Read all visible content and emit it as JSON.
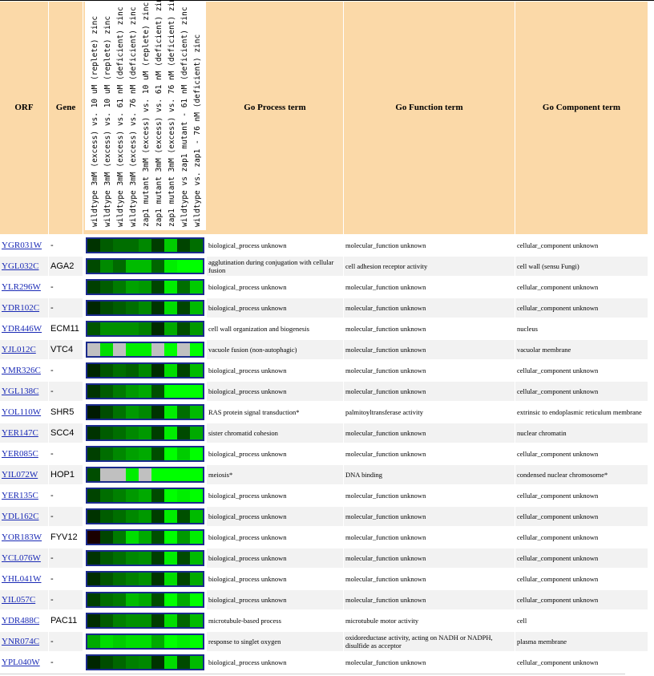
{
  "headers": {
    "orf": "ORF",
    "gene": "Gene",
    "process": "Go Process term",
    "function": "Go Function term",
    "component": "Go Component term",
    "experiments": [
      "wildtype 3mM (excess) vs. 10 uM (replete) zinc",
      "wildtype 3mM (excess) vs. 10 uM (replete) zinc",
      "wildtype 3mM (excess) vs. 61 nM (deficient) zinc",
      "wildtype 3mM (excess) vs. 76 nM (deficient) zinc",
      "zap1 mutant 3mM (excess) vs. 10 uM (replete) zinc",
      "zap1 mutant 3mM (excess) vs. 61 nM (deficient) zinc",
      "zap1 mutant 3mM (excess) vs. 76 nM (deficient) zinc",
      "wildtype vs zap1 mutant - 61 nM (deficient) zinc",
      "wildtype vs. zap1 - 76 nM (deficient) zinc"
    ]
  },
  "rows": [
    {
      "orf": "YGR031W",
      "gene": "-",
      "process": "biological_process unknown",
      "function": "molecular_function unknown",
      "component": "cellular_component unknown",
      "colors": [
        "#003300",
        "#005c00",
        "#006e00",
        "#006e00",
        "#008800",
        "#003d00",
        "#00cc00",
        "#004400",
        "#006e00"
      ]
    },
    {
      "orf": "YGL032C",
      "gene": "AGA2",
      "process": "agglutination during conjugation with cellular fusion",
      "function": "cell adhesion receptor activity",
      "component": "cell wall (sensu Fungi)",
      "colors": [
        "#004a00",
        "#008a00",
        "#006a00",
        "#00bb00",
        "#00bb00",
        "#006600",
        "#00ee00",
        "#00ff00",
        "#00ff00"
      ]
    },
    {
      "orf": "YLR296W",
      "gene": "-",
      "process": "biological_process unknown",
      "function": "molecular_function unknown",
      "component": "cellular_component unknown",
      "colors": [
        "#003f00",
        "#005c00",
        "#007a00",
        "#00a200",
        "#009900",
        "#004400",
        "#00ee00",
        "#006e00",
        "#00cc00"
      ]
    },
    {
      "orf": "YDR102C",
      "gene": "-",
      "process": "biological_process unknown",
      "function": "molecular_function unknown",
      "component": "cellular_component unknown",
      "colors": [
        "#002600",
        "#004d00",
        "#005c00",
        "#006e00",
        "#008800",
        "#003300",
        "#00dd00",
        "#004400",
        "#00bb00"
      ]
    },
    {
      "orf": "YDR446W",
      "gene": "ECM11",
      "process": "cell wall organization and biogenesis",
      "function": "molecular_function unknown",
      "component": "nucleus",
      "colors": [
        "#005500",
        "#009000",
        "#009000",
        "#009000",
        "#008000",
        "#002a00",
        "#00aa00",
        "#004d00",
        "#009900"
      ]
    },
    {
      "orf": "YJL012C",
      "gene": "VTC4",
      "process": "vacuole fusion (non-autophagic)",
      "function": "molecular_function unknown",
      "component": "vacuolar membrane",
      "colors": [
        "#c0c0c0",
        "#00dd00",
        "#c0c0c0",
        "#00ee00",
        "#00ee00",
        "#c0c0c0",
        "#00ff00",
        "#c0c0c0",
        "#00ff00"
      ]
    },
    {
      "orf": "YMR326C",
      "gene": "-",
      "process": "biological_process unknown",
      "function": "molecular_function unknown",
      "component": "cellular_component unknown",
      "colors": [
        "#002600",
        "#005500",
        "#006e00",
        "#006000",
        "#008800",
        "#002d00",
        "#00dd00",
        "#004400",
        "#00bb00"
      ]
    },
    {
      "orf": "YGL138C",
      "gene": "-",
      "process": "biological_process unknown",
      "function": "molecular_function unknown",
      "component": "cellular_component unknown",
      "colors": [
        "#003300",
        "#005c00",
        "#007a00",
        "#009900",
        "#00aa00",
        "#005000",
        "#00ff00",
        "#00ff00",
        "#00ff00"
      ]
    },
    {
      "orf": "YOL110W",
      "gene": "SHR5",
      "process": "RAS protein signal transduction*",
      "function": "palmitoyltransferase activity",
      "component": "extrinsic to endoplasmic reticulum membrane",
      "colors": [
        "#001a00",
        "#004d00",
        "#007200",
        "#009900",
        "#008800",
        "#003300",
        "#00ee00",
        "#006e00",
        "#00bb00"
      ]
    },
    {
      "orf": "YER147C",
      "gene": "SCC4",
      "process": "sister chromatid cohesion",
      "function": "molecular_function unknown",
      "component": "nuclear chromatin",
      "colors": [
        "#003300",
        "#005c00",
        "#006e00",
        "#008800",
        "#009900",
        "#003d00",
        "#00ee00",
        "#004a00",
        "#00aa00"
      ]
    },
    {
      "orf": "YER085C",
      "gene": "-",
      "process": "biological_process unknown",
      "function": "molecular_function unknown",
      "component": "cellular_component unknown",
      "colors": [
        "#004000",
        "#006e00",
        "#008800",
        "#00a000",
        "#00aa00",
        "#004d00",
        "#00ff00",
        "#00cc00",
        "#00ff00"
      ]
    },
    {
      "orf": "YIL072W",
      "gene": "HOP1",
      "process": "meiosis*",
      "function": "DNA binding",
      "component": "condensed nuclear chromosome*",
      "colors": [
        "#004d00",
        "#c0c0c0",
        "#c0c0c0",
        "#00ee00",
        "#c0c0c0",
        "#00ff00",
        "#00ff00",
        "#00ff00",
        "#00ff00"
      ]
    },
    {
      "orf": "YER135C",
      "gene": "-",
      "process": "biological_process unknown",
      "function": "molecular_function unknown",
      "component": "cellular_component unknown",
      "colors": [
        "#004400",
        "#006e00",
        "#008000",
        "#009900",
        "#00aa00",
        "#004a00",
        "#00ff00",
        "#00ee00",
        "#00ff00"
      ]
    },
    {
      "orf": "YDL162C",
      "gene": "-",
      "process": "biological_process unknown",
      "function": "molecular_function unknown",
      "component": "cellular_component unknown",
      "colors": [
        "#003300",
        "#005c00",
        "#006e00",
        "#008800",
        "#009900",
        "#003d00",
        "#00ee00",
        "#005000",
        "#00bb00"
      ]
    },
    {
      "orf": "YOR183W",
      "gene": "FYV12",
      "process": "biological_process unknown",
      "function": "molecular_function unknown",
      "component": "cellular_component unknown",
      "colors": [
        "#1a0000",
        "#004400",
        "#007a00",
        "#00dd00",
        "#00aa00",
        "#004d00",
        "#00ff00",
        "#009900",
        "#00ee00"
      ]
    },
    {
      "orf": "YCL076W",
      "gene": "-",
      "process": "biological_process unknown",
      "function": "molecular_function unknown",
      "component": "cellular_component unknown",
      "colors": [
        "#003300",
        "#005c00",
        "#006e00",
        "#008800",
        "#009000",
        "#003d00",
        "#00ee00",
        "#004a00",
        "#00bb00"
      ]
    },
    {
      "orf": "YHL041W",
      "gene": "-",
      "process": "biological_process unknown",
      "function": "molecular_function unknown",
      "component": "cellular_component unknown",
      "colors": [
        "#002d00",
        "#005500",
        "#006e00",
        "#008000",
        "#009000",
        "#003300",
        "#00dd00",
        "#004400",
        "#00aa00"
      ]
    },
    {
      "orf": "YIL057C",
      "gene": "-",
      "process": "biological_process unknown",
      "function": "molecular_function unknown",
      "component": "cellular_component unknown",
      "colors": [
        "#004000",
        "#006e00",
        "#007a00",
        "#00bb00",
        "#00aa00",
        "#004d00",
        "#00ff00",
        "#00aa00",
        "#00ff00"
      ]
    },
    {
      "orf": "YDR488C",
      "gene": "PAC11",
      "process": "microtubule-based process",
      "function": "microtubule motor activity",
      "component": "cell",
      "colors": [
        "#002d00",
        "#005c00",
        "#008000",
        "#009000",
        "#009000",
        "#003d00",
        "#00dd00",
        "#006600",
        "#00bb00"
      ]
    },
    {
      "orf": "YNR074C",
      "gene": "-",
      "process": "response to singlet oxygen",
      "function": "oxidoreductase activity, acting on NADH or NADPH, disulfide as acceptor",
      "component": "plasma membrane",
      "colors": [
        "#00aa00",
        "#00dd00",
        "#00cc00",
        "#00dd00",
        "#00dd00",
        "#00aa00",
        "#00ff00",
        "#00ee00",
        "#00ff00"
      ]
    },
    {
      "orf": "YPL040W",
      "gene": "-",
      "process": "biological_process unknown",
      "function": "molecular_function unknown",
      "component": "cellular_component unknown",
      "colors": [
        "#002600",
        "#004d00",
        "#006600",
        "#008000",
        "#008800",
        "#003300",
        "#00dd00",
        "#004a00",
        "#00bb00"
      ]
    }
  ]
}
